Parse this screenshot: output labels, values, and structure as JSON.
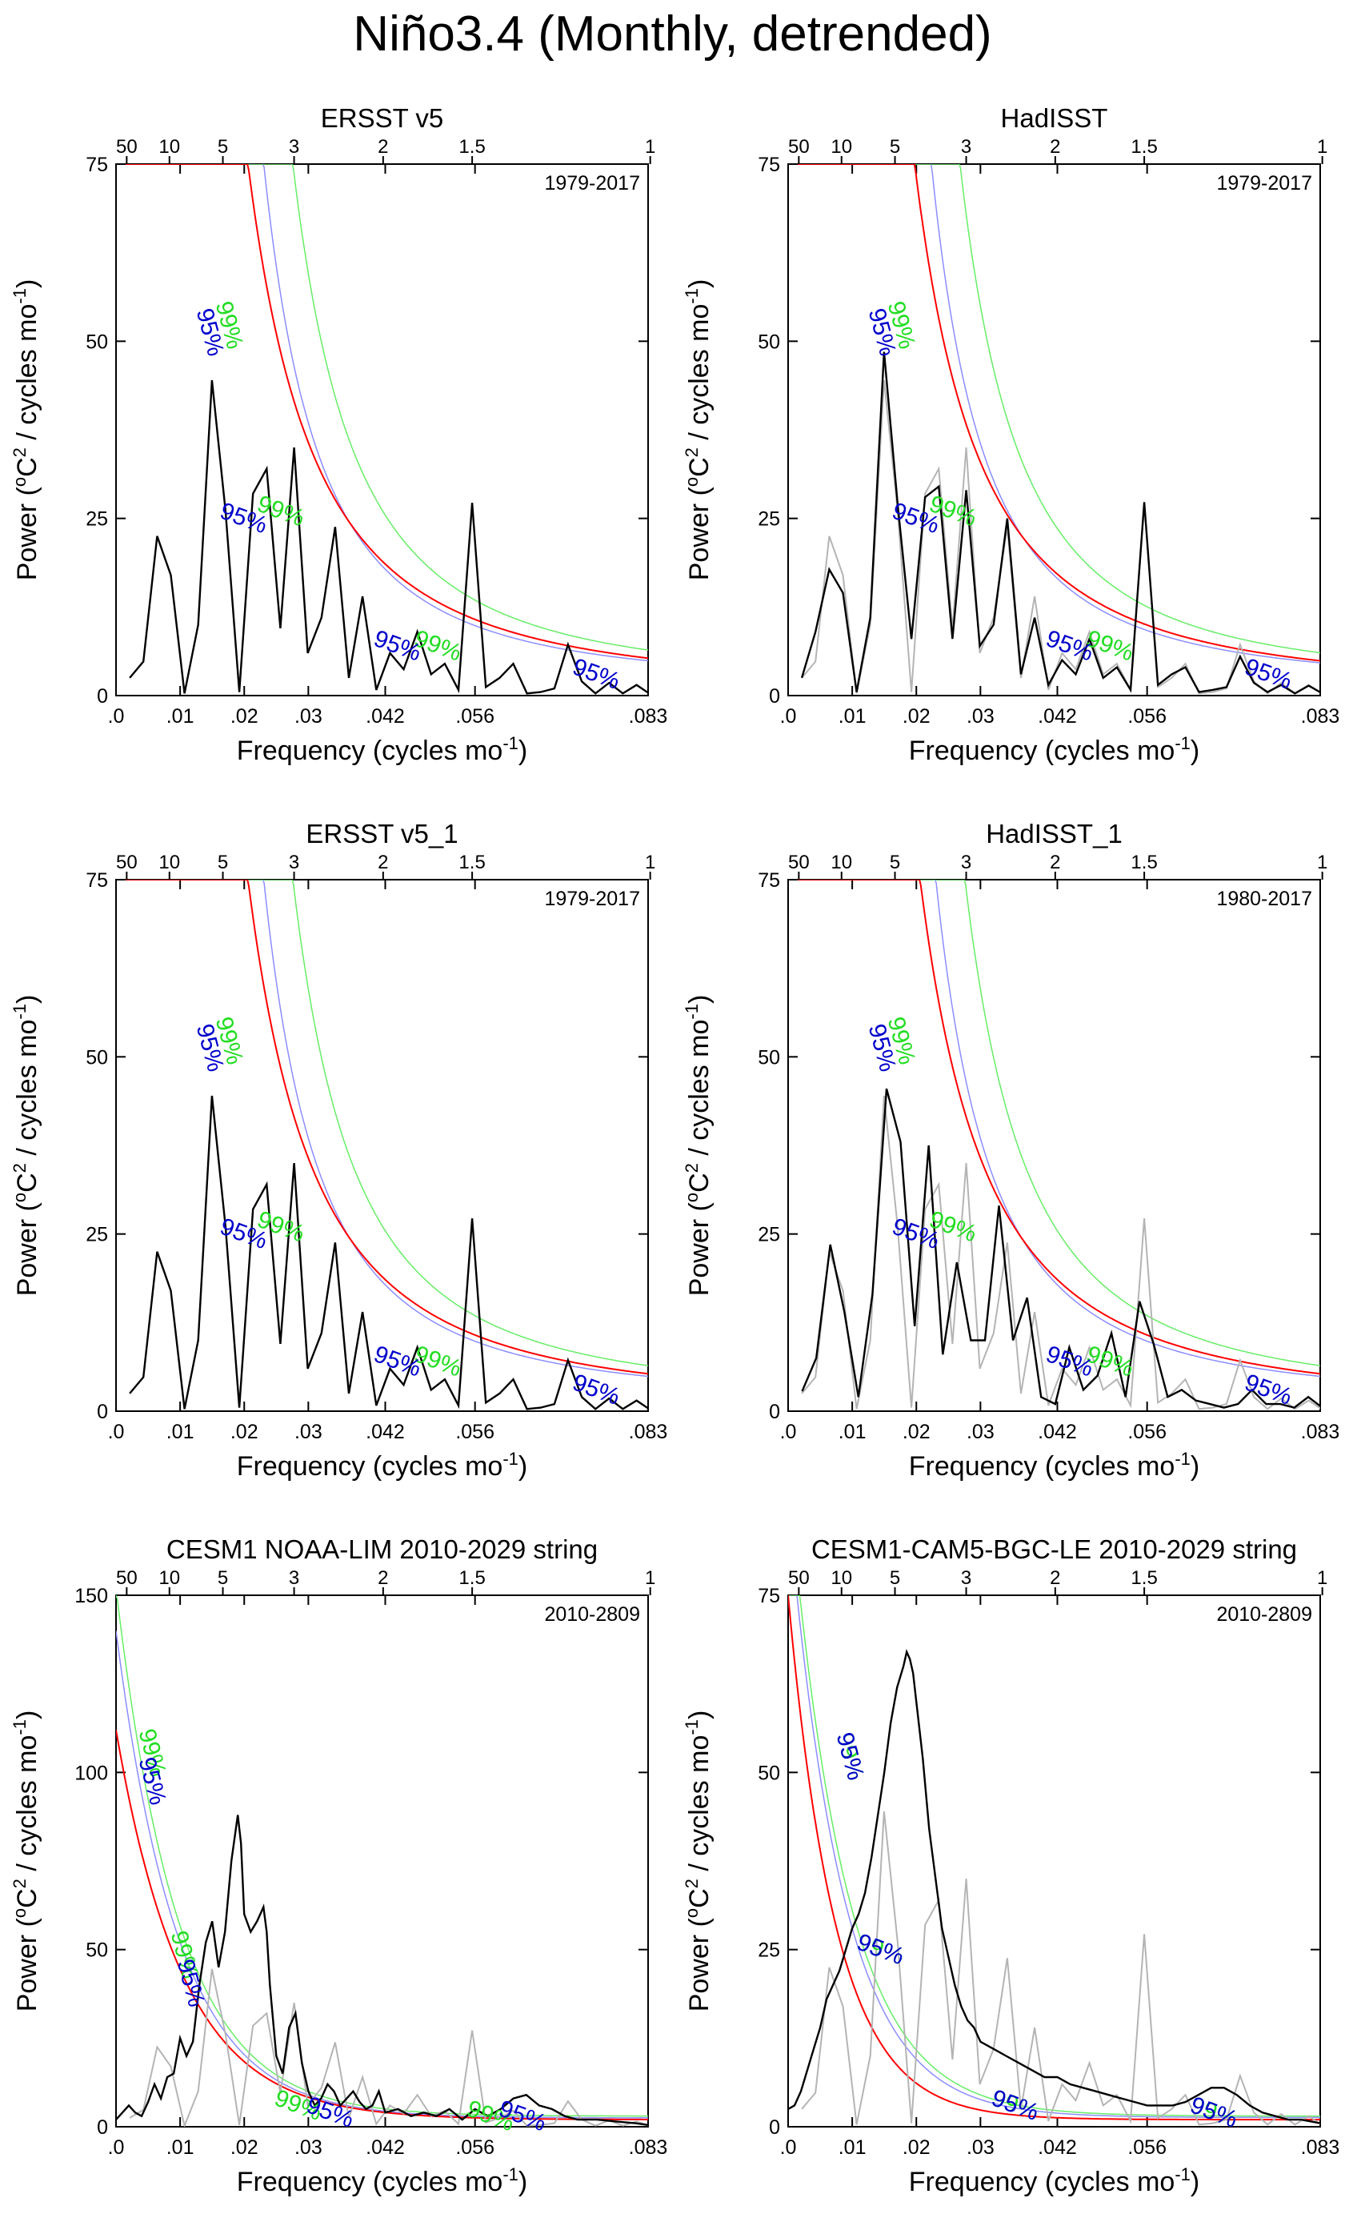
{
  "title": "Niño3.4 (Monthly, detrended)",
  "common": {
    "x_label": "Frequency (cycles mo",
    "x_label_sup": "-1",
    "x_label_close": ")",
    "y_label_prefix": "Power (",
    "y_label_o": "o",
    "y_label_C": "C",
    "y_label_2": "2",
    "y_label_mid": " / cycles mo",
    "y_label_sup": "-1",
    "y_label_close": ")",
    "x_ticks": [
      {
        "value": 0.0,
        "label": ".0"
      },
      {
        "value": 0.01,
        "label": ".01"
      },
      {
        "value": 0.02,
        "label": ".02"
      },
      {
        "value": 0.03,
        "label": ".03"
      },
      {
        "value": 0.042,
        "label": ".042"
      },
      {
        "value": 0.056,
        "label": ".056"
      },
      {
        "value": 0.083,
        "label": ".083"
      }
    ],
    "top_ticks": [
      {
        "period_years": 50,
        "label": "50"
      },
      {
        "period_years": 10,
        "label": "10"
      },
      {
        "period_years": 5,
        "label": "5"
      },
      {
        "period_years": 3,
        "label": "3"
      },
      {
        "period_years": 2,
        "label": "2"
      },
      {
        "period_years": 1.5,
        "label": "1.5"
      },
      {
        "period_years": 1,
        "label": "1"
      }
    ],
    "xlim": [
      0.0,
      0.083
    ],
    "sig95_label": "95%",
    "sig99_label": "99%",
    "colors": {
      "spectrum": "#000000",
      "obs_gray": "#b4b4b4",
      "red_noise": "#ff0000",
      "sig95": "#8c8cff",
      "sig99": "#66ee66",
      "label95": "#0000cc",
      "label99": "#22dd22"
    }
  },
  "chart_data": [
    {
      "type": "line",
      "title": "ERSST v5",
      "period_label": "1979-2017",
      "ylim": [
        0,
        75
      ],
      "yticks": [
        0,
        25,
        50,
        75
      ],
      "x": [
        0.00214,
        0.00427,
        0.00641,
        0.00855,
        0.01068,
        0.01282,
        0.01496,
        0.01709,
        0.01923,
        0.02137,
        0.0235,
        0.02564,
        0.02778,
        0.02991,
        0.03205,
        0.03419,
        0.03632,
        0.03846,
        0.0406,
        0.04274,
        0.04487,
        0.04701,
        0.04915,
        0.05128,
        0.05342,
        0.05556,
        0.05769,
        0.05983,
        0.06197,
        0.0641,
        0.06624,
        0.06838,
        0.07051,
        0.07265,
        0.07479,
        0.07692,
        0.07906,
        0.0812,
        0.08333
      ],
      "spectrum": [
        2.5,
        4.8,
        22.5,
        17.0,
        0.3,
        10.0,
        44.5,
        26.0,
        0.5,
        28.5,
        32.0,
        9.5,
        35.0,
        6.0,
        11.0,
        23.8,
        2.5,
        14.0,
        0.8,
        6.0,
        3.7,
        9.0,
        3.0,
        4.5,
        0.8,
        27.2,
        1.2,
        2.5,
        4.5,
        0.3,
        0.5,
        1.0,
        7.2,
        2.0,
        0.3,
        1.8,
        0.3,
        1.5,
        0.2
      ],
      "obs_spectrum": null,
      "red_noise": {
        "a": 0.0315,
        "b": 0.68,
        "c": 0.7
      },
      "sig95_labels": [
        {
          "x": 0.0135,
          "y": 51
        },
        {
          "x": 0.0195,
          "y": 24
        },
        {
          "x": 0.0435,
          "y": 6
        },
        {
          "x": 0.0745,
          "y": 2
        }
      ],
      "sig99_labels": [
        {
          "x": 0.0165,
          "y": 52
        },
        {
          "x": 0.0253,
          "y": 25
        },
        {
          "x": 0.0498,
          "y": 6
        }
      ]
    },
    {
      "type": "line",
      "title": "HadISST",
      "period_label": "1979-2017",
      "ylim": [
        0,
        75
      ],
      "yticks": [
        0,
        25,
        50,
        75
      ],
      "x": [
        0.00214,
        0.00427,
        0.00641,
        0.00855,
        0.01068,
        0.01282,
        0.01496,
        0.01709,
        0.01923,
        0.02137,
        0.0235,
        0.02564,
        0.02778,
        0.02991,
        0.03205,
        0.03419,
        0.03632,
        0.03846,
        0.0406,
        0.04274,
        0.04487,
        0.04701,
        0.04915,
        0.05128,
        0.05342,
        0.05556,
        0.05769,
        0.05983,
        0.06197,
        0.0641,
        0.06624,
        0.06838,
        0.07051,
        0.07265,
        0.07479,
        0.07692,
        0.07906,
        0.0812,
        0.08333
      ],
      "spectrum": [
        2.5,
        9.0,
        17.8,
        14.5,
        0.5,
        11.0,
        48.5,
        27.0,
        8.0,
        28.0,
        29.5,
        8.0,
        29.0,
        7.0,
        10.0,
        25.0,
        3.0,
        11.0,
        1.5,
        5.0,
        3.0,
        8.0,
        2.5,
        4.0,
        0.8,
        27.3,
        1.5,
        3.0,
        4.0,
        0.5,
        0.8,
        1.2,
        5.5,
        1.8,
        0.5,
        1.5,
        0.3,
        1.4,
        0.3
      ],
      "obs_spectrum": [
        2.5,
        4.8,
        22.5,
        17.0,
        0.3,
        10.0,
        44.5,
        26.0,
        0.5,
        28.5,
        32.0,
        9.5,
        35.0,
        6.0,
        11.0,
        23.8,
        2.5,
        14.0,
        0.8,
        6.0,
        3.7,
        9.0,
        3.0,
        4.5,
        0.8,
        27.2,
        1.2,
        2.5,
        4.5,
        0.3,
        0.5,
        1.0,
        7.2,
        2.0,
        0.3,
        1.8,
        0.3,
        1.5,
        0.2
      ],
      "red_noise": {
        "a": 0.029,
        "b": 0.68,
        "c": 0.7
      },
      "sig95_labels": [
        {
          "x": 0.0135,
          "y": 51
        },
        {
          "x": 0.0195,
          "y": 24
        },
        {
          "x": 0.0435,
          "y": 6
        },
        {
          "x": 0.0745,
          "y": 2
        }
      ],
      "sig99_labels": [
        {
          "x": 0.0165,
          "y": 52
        },
        {
          "x": 0.0253,
          "y": 25
        },
        {
          "x": 0.0498,
          "y": 6
        }
      ]
    },
    {
      "type": "line",
      "title": "ERSST v5_1",
      "period_label": "1979-2017",
      "ylim": [
        0,
        75
      ],
      "yticks": [
        0,
        25,
        50,
        75
      ],
      "x": [
        0.00214,
        0.00427,
        0.00641,
        0.00855,
        0.01068,
        0.01282,
        0.01496,
        0.01709,
        0.01923,
        0.02137,
        0.0235,
        0.02564,
        0.02778,
        0.02991,
        0.03205,
        0.03419,
        0.03632,
        0.03846,
        0.0406,
        0.04274,
        0.04487,
        0.04701,
        0.04915,
        0.05128,
        0.05342,
        0.05556,
        0.05769,
        0.05983,
        0.06197,
        0.0641,
        0.06624,
        0.06838,
        0.07051,
        0.07265,
        0.07479,
        0.07692,
        0.07906,
        0.0812,
        0.08333
      ],
      "spectrum": [
        2.5,
        4.8,
        22.5,
        17.0,
        0.3,
        10.0,
        44.5,
        26.0,
        0.5,
        28.5,
        32.0,
        9.5,
        35.0,
        6.0,
        11.0,
        23.8,
        2.5,
        14.0,
        0.8,
        6.0,
        3.7,
        9.0,
        3.0,
        4.5,
        0.8,
        27.2,
        1.2,
        2.5,
        4.5,
        0.3,
        0.5,
        1.0,
        7.2,
        2.0,
        0.3,
        1.8,
        0.3,
        1.5,
        0.2
      ],
      "obs_spectrum": null,
      "red_noise": {
        "a": 0.0315,
        "b": 0.68,
        "c": 0.7
      },
      "sig95_labels": [
        {
          "x": 0.0135,
          "y": 51
        },
        {
          "x": 0.0195,
          "y": 24
        },
        {
          "x": 0.0435,
          "y": 6
        },
        {
          "x": 0.0745,
          "y": 2
        }
      ],
      "sig99_labels": [
        {
          "x": 0.0165,
          "y": 52
        },
        {
          "x": 0.0253,
          "y": 25
        },
        {
          "x": 0.0498,
          "y": 6
        }
      ]
    },
    {
      "type": "line",
      "title": "HadISST_1",
      "period_label": "1980-2017",
      "ylim": [
        0,
        75
      ],
      "yticks": [
        0,
        25,
        50,
        75
      ],
      "x": [
        0.00219,
        0.00439,
        0.00658,
        0.00877,
        0.01096,
        0.01316,
        0.01535,
        0.01754,
        0.01974,
        0.02193,
        0.02412,
        0.02632,
        0.02851,
        0.0307,
        0.03289,
        0.03509,
        0.03728,
        0.03947,
        0.04167,
        0.04386,
        0.04605,
        0.04825,
        0.05044,
        0.05263,
        0.05482,
        0.05702,
        0.05921,
        0.0614,
        0.0636,
        0.06579,
        0.06798,
        0.07018,
        0.07237,
        0.07456,
        0.07675,
        0.07895,
        0.08114,
        0.08333
      ],
      "spectrum": [
        2.8,
        7.5,
        23.5,
        14.0,
        2.0,
        16.5,
        45.5,
        38.0,
        12.0,
        37.5,
        8.0,
        21.0,
        10.0,
        10.0,
        29.0,
        10.0,
        16.0,
        2.0,
        1.0,
        9.0,
        3.0,
        5.0,
        11.0,
        2.0,
        15.5,
        9.5,
        2.0,
        3.0,
        1.5,
        1.0,
        0.5,
        1.0,
        3.0,
        1.0,
        1.0,
        0.5,
        2.0,
        0.5
      ],
      "obs_spectrum": [
        2.5,
        4.8,
        22.5,
        17.0,
        0.3,
        10.0,
        44.5,
        26.0,
        0.5,
        28.5,
        32.0,
        9.5,
        35.0,
        6.0,
        11.0,
        23.8,
        2.5,
        14.0,
        0.8,
        6.0,
        3.7,
        9.0,
        3.0,
        4.5,
        0.8,
        27.2,
        1.2,
        2.5,
        4.5,
        0.3,
        0.5,
        1.0,
        7.2,
        2.0,
        0.3,
        1.8,
        0.3,
        1.5,
        0.2
      ],
      "red_noise": {
        "a": 0.0315,
        "b": 0.68,
        "c": 0.7
      },
      "sig95_labels": [
        {
          "x": 0.0135,
          "y": 51
        },
        {
          "x": 0.0195,
          "y": 24
        },
        {
          "x": 0.0435,
          "y": 6
        },
        {
          "x": 0.0745,
          "y": 2
        }
      ],
      "sig99_labels": [
        {
          "x": 0.0165,
          "y": 52
        },
        {
          "x": 0.0253,
          "y": 25
        },
        {
          "x": 0.0498,
          "y": 6
        }
      ]
    },
    {
      "type": "line",
      "title": "CESM1 NOAA-LIM 2010-2029 string",
      "period_label": "2010-2809",
      "ylim": [
        0,
        150
      ],
      "yticks": [
        0,
        50,
        100,
        150
      ],
      "x": [
        0.0,
        0.001,
        0.002,
        0.003,
        0.004,
        0.005,
        0.006,
        0.007,
        0.008,
        0.009,
        0.01,
        0.011,
        0.012,
        0.013,
        0.014,
        0.015,
        0.016,
        0.017,
        0.018,
        0.019,
        0.0195,
        0.02,
        0.021,
        0.022,
        0.023,
        0.0235,
        0.024,
        0.025,
        0.026,
        0.027,
        0.028,
        0.029,
        0.03,
        0.031,
        0.032,
        0.033,
        0.034,
        0.035,
        0.036,
        0.037,
        0.038,
        0.039,
        0.04,
        0.041,
        0.042,
        0.044,
        0.046,
        0.048,
        0.05,
        0.052,
        0.054,
        0.056,
        0.058,
        0.06,
        0.062,
        0.064,
        0.066,
        0.068,
        0.07,
        0.072,
        0.075,
        0.078,
        0.081,
        0.083
      ],
      "spectrum": [
        2.0,
        4.0,
        6.0,
        4.0,
        3.0,
        7.0,
        12.0,
        8.0,
        14.0,
        15.0,
        25.0,
        20.0,
        24.0,
        40.0,
        52.0,
        58.0,
        45.0,
        55.0,
        75.0,
        88.0,
        80.0,
        60.0,
        55.0,
        58.0,
        62.0,
        55.0,
        40.0,
        20.0,
        15.0,
        28.0,
        32.0,
        18.0,
        10.0,
        6.0,
        8.0,
        12.0,
        10.0,
        6.0,
        8.0,
        10.0,
        7.0,
        5.0,
        6.0,
        10.0,
        4.0,
        5.0,
        3.0,
        4.0,
        3.0,
        5.0,
        2.0,
        5.0,
        3.0,
        5.0,
        8.0,
        9.0,
        6.0,
        5.0,
        3.0,
        2.0,
        2.0,
        1.5,
        1.0,
        0.5
      ],
      "obs_spectrum": [
        2.5,
        4.8,
        22.5,
        17.0,
        0.3,
        10.0,
        44.5,
        26.0,
        0.5,
        28.5,
        32.0,
        9.5,
        35.0,
        6.0,
        11.0,
        23.8,
        2.5,
        14.0,
        0.8,
        6.0,
        3.7,
        9.0,
        3.0,
        4.5,
        0.8,
        27.2,
        1.2,
        2.5,
        4.5,
        0.3,
        0.5,
        1.0,
        7.2,
        2.0,
        0.3,
        1.8,
        0.3,
        1.5,
        0.2
      ],
      "obs_x": [
        0.00214,
        0.00427,
        0.00641,
        0.00855,
        0.01068,
        0.01282,
        0.01496,
        0.01709,
        0.01923,
        0.02137,
        0.0235,
        0.02564,
        0.02778,
        0.02991,
        0.03205,
        0.03419,
        0.03632,
        0.03846,
        0.0406,
        0.04274,
        0.04487,
        0.04701,
        0.04915,
        0.05128,
        0.05342,
        0.05556,
        0.05769,
        0.05983,
        0.06197,
        0.0641,
        0.06624,
        0.06838,
        0.07051,
        0.07265,
        0.07479,
        0.07692,
        0.07906,
        0.0812,
        0.08333
      ],
      "red_noise_curve": {
        "peak": 112,
        "decay": 0.0105,
        "floor": 2.0
      },
      "sig95_curve": {
        "peak": 140,
        "decay": 0.0098,
        "floor": 2.5
      },
      "sig99_curve": {
        "peak": 152,
        "decay": 0.0098,
        "floor": 3.0
      },
      "sig95_labels": [
        {
          "x": 0.0045,
          "y": 97
        },
        {
          "x": 0.0105,
          "y": 40
        },
        {
          "x": 0.033,
          "y": 2
        },
        {
          "x": 0.063,
          "y": 1
        }
      ],
      "sig99_labels": [
        {
          "x": 0.0045,
          "y": 105
        },
        {
          "x": 0.0095,
          "y": 48
        },
        {
          "x": 0.028,
          "y": 4
        },
        {
          "x": 0.058,
          "y": 1
        }
      ]
    },
    {
      "type": "line",
      "title": "CESM1-CAM5-BGC-LE 2010-2029 string",
      "period_label": "2010-2809",
      "ylim": [
        0,
        75
      ],
      "yticks": [
        0,
        25,
        50,
        75
      ],
      "x": [
        0.0,
        0.001,
        0.002,
        0.003,
        0.004,
        0.005,
        0.006,
        0.007,
        0.008,
        0.009,
        0.01,
        0.011,
        0.012,
        0.013,
        0.014,
        0.015,
        0.016,
        0.017,
        0.018,
        0.0185,
        0.019,
        0.0195,
        0.02,
        0.021,
        0.022,
        0.023,
        0.024,
        0.025,
        0.026,
        0.027,
        0.028,
        0.029,
        0.03,
        0.032,
        0.034,
        0.036,
        0.038,
        0.04,
        0.042,
        0.044,
        0.046,
        0.048,
        0.05,
        0.052,
        0.054,
        0.056,
        0.058,
        0.06,
        0.062,
        0.064,
        0.066,
        0.068,
        0.07,
        0.072,
        0.074,
        0.076,
        0.078,
        0.08,
        0.083
      ],
      "spectrum": [
        2.5,
        3.0,
        5.0,
        8.0,
        11.0,
        14.0,
        18.0,
        20.0,
        22.0,
        25.0,
        28.0,
        30.0,
        33.0,
        38.0,
        44.0,
        50.0,
        57.0,
        62.0,
        65.0,
        67.0,
        66.0,
        64.0,
        60.0,
        52.0,
        42.0,
        35.0,
        28.0,
        24.0,
        20.0,
        17.0,
        15.0,
        14.0,
        12.0,
        11.0,
        10.0,
        9.0,
        8.0,
        7.0,
        7.0,
        6.0,
        5.5,
        5.0,
        4.5,
        4.0,
        3.5,
        3.0,
        3.0,
        3.0,
        3.5,
        4.5,
        5.5,
        5.5,
        4.5,
        3.0,
        2.0,
        1.5,
        1.0,
        1.0,
        0.5
      ],
      "obs_spectrum": [
        2.5,
        4.8,
        22.5,
        17.0,
        0.3,
        10.0,
        44.5,
        26.0,
        0.5,
        28.5,
        32.0,
        9.5,
        35.0,
        6.0,
        11.0,
        23.8,
        2.5,
        14.0,
        0.8,
        6.0,
        3.7,
        9.0,
        3.0,
        4.5,
        0.8,
        27.2,
        1.2,
        2.5,
        4.5,
        0.3,
        0.5,
        1.0,
        7.2,
        2.0,
        0.3,
        1.8,
        0.3,
        1.5,
        0.2
      ],
      "obs_x": [
        0.00214,
        0.00427,
        0.00641,
        0.00855,
        0.01068,
        0.01282,
        0.01496,
        0.01709,
        0.01923,
        0.02137,
        0.0235,
        0.02564,
        0.02778,
        0.02991,
        0.03205,
        0.03419,
        0.03632,
        0.03846,
        0.0406,
        0.04274,
        0.04487,
        0.04701,
        0.04915,
        0.05128,
        0.05342,
        0.05556,
        0.05769,
        0.05983,
        0.06197,
        0.0641,
        0.06624,
        0.06838,
        0.07051,
        0.07265,
        0.07479,
        0.07692,
        0.07906,
        0.0812,
        0.08333
      ],
      "red_noise_curve": {
        "peak": 75,
        "decay": 0.0075,
        "floor": 1.0
      },
      "sig95_curve": {
        "peak": 88,
        "decay": 0.0085,
        "floor": 1.3
      },
      "sig99_curve": {
        "peak": 92,
        "decay": 0.0088,
        "floor": 1.5
      },
      "sig95_labels": [
        {
          "x": 0.0085,
          "y": 52
        },
        {
          "x": 0.014,
          "y": 24
        },
        {
          "x": 0.035,
          "y": 2
        },
        {
          "x": 0.066,
          "y": 1
        }
      ],
      "sig99_labels": [
        {
          "x": 0.0085,
          "y": 52
        },
        {
          "x": 0.014,
          "y": 24
        },
        {
          "x": 0.035,
          "y": 2
        },
        {
          "x": 0.066,
          "y": 1
        }
      ]
    }
  ]
}
